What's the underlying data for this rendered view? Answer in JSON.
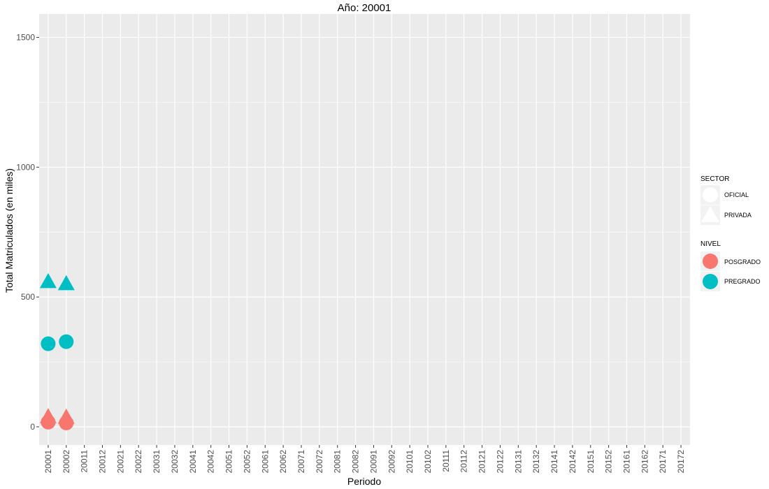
{
  "chart_data": {
    "type": "scatter",
    "title": "Año: 20001",
    "xlabel": "Periodo",
    "ylabel": "Total Matriculados (en miles)",
    "ylim": [
      -70,
      1590
    ],
    "yticks": [
      0,
      500,
      1000,
      1500
    ],
    "grid": true,
    "legend_position": "right",
    "x_categories": [
      "20001",
      "20002",
      "20011",
      "20012",
      "20021",
      "20022",
      "20031",
      "20032",
      "20041",
      "20042",
      "20051",
      "20052",
      "20061",
      "20062",
      "20071",
      "20072",
      "20081",
      "20082",
      "20091",
      "20092",
      "20101",
      "20102",
      "20111",
      "20112",
      "20121",
      "20122",
      "20131",
      "20132",
      "20141",
      "20142",
      "20151",
      "20152",
      "20161",
      "20162",
      "20171",
      "20172"
    ],
    "points": [
      {
        "x": "20001",
        "y": 320,
        "sector": "OFICIAL",
        "nivel": "PREGRADO"
      },
      {
        "x": "20002",
        "y": 328,
        "sector": "OFICIAL",
        "nivel": "PREGRADO"
      },
      {
        "x": "20001",
        "y": 560,
        "sector": "PRIVADA",
        "nivel": "PREGRADO"
      },
      {
        "x": "20002",
        "y": 552,
        "sector": "PRIVADA",
        "nivel": "PREGRADO"
      },
      {
        "x": "20001",
        "y": 18,
        "sector": "OFICIAL",
        "nivel": "POSGRADO"
      },
      {
        "x": "20002",
        "y": 15,
        "sector": "OFICIAL",
        "nivel": "POSGRADO"
      },
      {
        "x": "20001",
        "y": 40,
        "sector": "PRIVADA",
        "nivel": "POSGRADO"
      },
      {
        "x": "20002",
        "y": 38,
        "sector": "PRIVADA",
        "nivel": "POSGRADO"
      }
    ],
    "legend": {
      "sector": {
        "title": "SECTOR",
        "items": [
          {
            "label": "OFICIAL",
            "shape": "circle"
          },
          {
            "label": "PRIVADA",
            "shape": "triangle"
          }
        ]
      },
      "nivel": {
        "title": "NIVEL",
        "items": [
          {
            "label": "POSGRADO",
            "color": "#F8766D"
          },
          {
            "label": "PREGRADO",
            "color": "#00BFC4"
          }
        ]
      }
    },
    "colors": {
      "POSGRADO": "#F8766D",
      "PREGRADO": "#00BFC4",
      "panel": "#EBEBEB",
      "grid": "#FFFFFF"
    }
  }
}
